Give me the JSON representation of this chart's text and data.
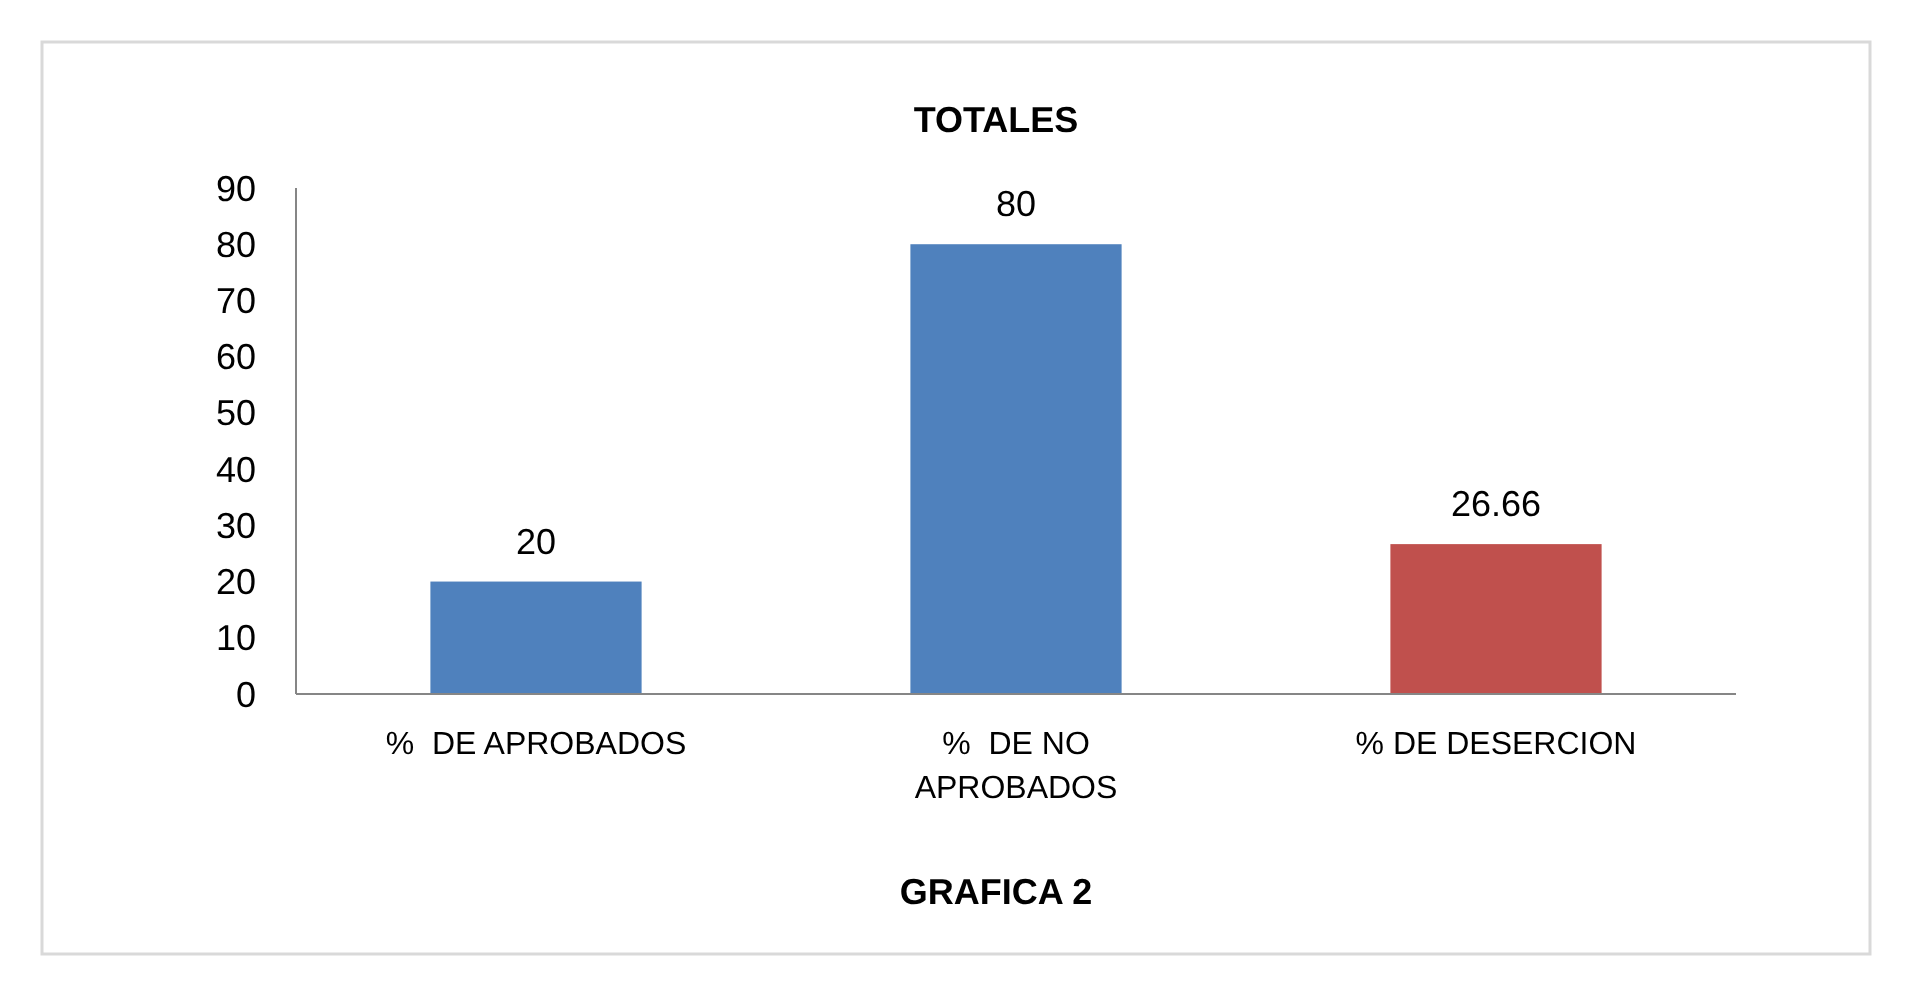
{
  "chart_data": {
    "type": "bar",
    "title": "TOTALES",
    "categories": [
      "%  DE APROBADOS",
      "%  DE NO APROBADOS",
      "% DE DESERCION"
    ],
    "values": [
      20,
      80,
      26.66
    ],
    "colors": [
      "#4f81bd",
      "#4f81bd",
      "#c0504d"
    ],
    "ylim": [
      0,
      90
    ],
    "yticks": [
      0,
      10,
      20,
      30,
      40,
      50,
      60,
      70,
      80,
      90
    ],
    "data_labels": true,
    "annotations": [
      "GRAFICA 2"
    ]
  }
}
